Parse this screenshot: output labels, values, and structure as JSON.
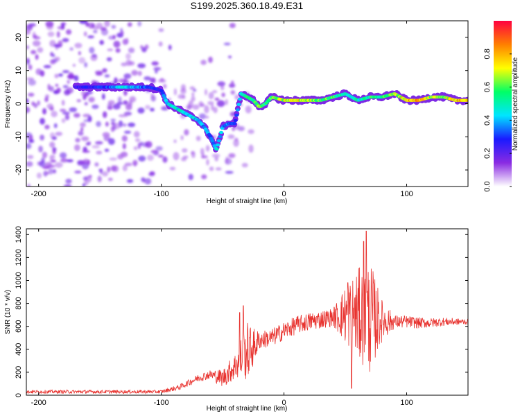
{
  "title": "S199.2025.360.18.49.E31",
  "colors": {
    "series": "#e8322e",
    "frame": "#000000",
    "background": "#ffffff"
  },
  "chart_data": [
    {
      "type": "heatmap",
      "name": "spectrogram",
      "xlabel": "Height of straight line (km)",
      "ylabel": "Frequency (Hz)",
      "xlim": [
        -210,
        150
      ],
      "ylim": [
        -25,
        25
      ],
      "xticks": [
        -200,
        -100,
        0,
        100
      ],
      "yticks": [
        -20,
        -10,
        0,
        10,
        20
      ],
      "colorbar": {
        "label": "Normalized spectral amplitude",
        "range": [
          0,
          1
        ],
        "ticks": [
          "0.0",
          "0.2",
          "0.4",
          "0.6",
          "0.8"
        ],
        "colormap": [
          "#ffffff",
          "#8a2be2",
          "#1a1aff",
          "#00e5ff",
          "#00ff66",
          "#ffff00",
          "#ff7f00",
          "#ff0040"
        ]
      },
      "ridge": {
        "description": "dominant frequency track (Hz) vs height (km)",
        "x": [
          -170,
          -150,
          -130,
          -120,
          -110,
          -100,
          -95,
          -90,
          -80,
          -70,
          -65,
          -60,
          -55,
          -50,
          -45,
          -40,
          -35,
          -30,
          -25,
          -20,
          -15,
          -10,
          0,
          10,
          20,
          30,
          40,
          50,
          60,
          70,
          80,
          90,
          100,
          110,
          120,
          130,
          140,
          150
        ],
        "y": [
          5,
          5,
          5,
          5,
          5,
          4,
          0,
          -1,
          -3,
          -5,
          -7,
          -10,
          -14,
          -7,
          -6,
          -6,
          3,
          2,
          1,
          -1,
          0,
          2,
          1,
          1,
          1,
          1,
          2,
          3,
          1,
          2,
          2,
          3,
          1,
          1,
          2,
          2,
          1,
          1
        ],
        "amplitude": [
          0.25,
          0.3,
          0.45,
          0.4,
          0.3,
          0.3,
          0.45,
          0.5,
          0.45,
          0.45,
          0.4,
          0.35,
          0.45,
          0.4,
          0.35,
          0.3,
          0.45,
          0.55,
          0.6,
          0.7,
          0.55,
          0.6,
          0.7,
          0.75,
          0.7,
          0.65,
          0.6,
          0.5,
          0.5,
          0.55,
          0.6,
          0.65,
          0.8,
          0.85,
          0.7,
          0.7,
          0.8,
          0.85
        ]
      }
    },
    {
      "type": "line",
      "name": "snr",
      "xlabel": "Height of straight line (km)",
      "ylabel": "SNR (10 * v/v)",
      "xlim": [
        -210,
        150
      ],
      "ylim": [
        0,
        1450
      ],
      "xticks": [
        -200,
        -100,
        0,
        100
      ],
      "yticks": [
        0,
        200,
        400,
        600,
        800,
        1000,
        1200,
        1400
      ],
      "series": [
        {
          "name": "SNR",
          "color": "#e8322e",
          "envelope_x": [
            -210,
            -150,
            -100,
            -85,
            -70,
            -60,
            -50,
            -40,
            -35,
            -30,
            -25,
            -20,
            -10,
            0,
            10,
            20,
            30,
            40,
            50,
            60,
            65,
            70,
            80,
            90,
            100,
            110,
            120,
            130,
            140,
            150
          ],
          "envelope_y": [
            30,
            30,
            30,
            70,
            150,
            180,
            150,
            250,
            320,
            380,
            420,
            480,
            500,
            560,
            610,
            640,
            660,
            680,
            700,
            700,
            700,
            680,
            650,
            640,
            640,
            630,
            630,
            640,
            640,
            640
          ],
          "noise_x": [
            -210,
            -100,
            -60,
            -40,
            -30,
            -20,
            40,
            50,
            60,
            70,
            80,
            90,
            150
          ],
          "noise_amp": [
            15,
            15,
            40,
            120,
            260,
            80,
            80,
            260,
            400,
            500,
            180,
            60,
            25
          ],
          "peaks": [
            {
              "x": -33,
              "y": 780
            },
            {
              "x": -36,
              "y": 720
            },
            {
              "x": 65,
              "y": 1340
            },
            {
              "x": 67,
              "y": 1430
            },
            {
              "x": 52,
              "y": 980
            },
            {
              "x": 55,
              "y": 60
            }
          ]
        }
      ]
    }
  ]
}
